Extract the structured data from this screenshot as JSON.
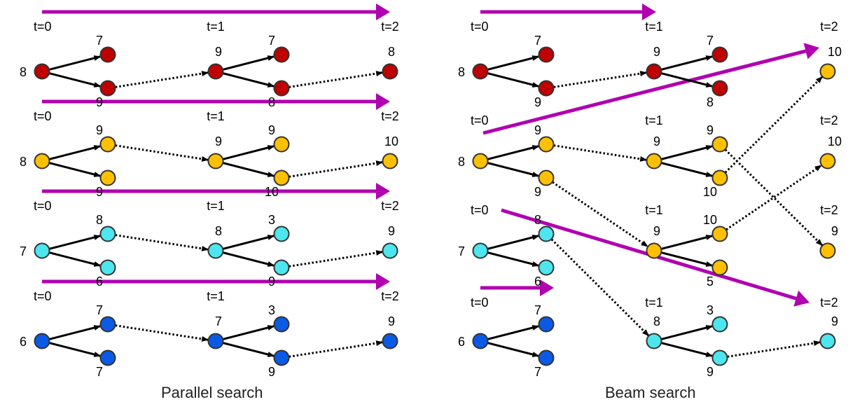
{
  "colors": {
    "red": "#c00000",
    "orange": "#ffc000",
    "cyan": "#4ee6ee",
    "blue": "#0a5ae6",
    "arrow": "#b000b0",
    "stroke": "#333333"
  },
  "captions": {
    "parallel": "Parallel search",
    "beam": "Beam search"
  },
  "time_labels": {
    "t0": "t=0",
    "t1": "t=1",
    "t2": "t=2"
  },
  "parallel": {
    "rows": [
      {
        "color": "red",
        "start": "8",
        "c1_top": "7",
        "c1_bot": "9",
        "mid": "9",
        "c2_top": "7",
        "c2_bot": "8",
        "end": "8"
      },
      {
        "color": "orange",
        "start": "8",
        "c1_top": "9",
        "c1_bot": "9",
        "mid": "9",
        "c2_top": "9",
        "c2_bot": "10",
        "end": "10"
      },
      {
        "color": "cyan",
        "start": "7",
        "c1_top": "8",
        "c1_bot": "6",
        "mid": "8",
        "c2_top": "3",
        "c2_bot": "9",
        "end": "9"
      },
      {
        "color": "blue",
        "start": "6",
        "c1_top": "7",
        "c1_bot": "7",
        "mid": "7",
        "c2_top": "3",
        "c2_bot": "9",
        "end": "9"
      }
    ]
  },
  "beam": {
    "start": [
      {
        "color": "red",
        "start": "8",
        "top": "7",
        "bot": "9"
      },
      {
        "color": "orange",
        "start": "8",
        "top": "9",
        "bot": "9"
      },
      {
        "color": "cyan",
        "start": "7",
        "top": "8",
        "bot": "6"
      },
      {
        "color": "blue",
        "start": "6",
        "top": "7",
        "bot": "7"
      }
    ],
    "mid": [
      {
        "color": "red",
        "mid": "9",
        "top": "7",
        "bot": "8"
      },
      {
        "color": "orange",
        "mid": "9",
        "top": "9",
        "bot": "10"
      },
      {
        "color": "orange",
        "mid": "9",
        "top": "10",
        "bot": "5"
      },
      {
        "color": "cyan",
        "mid": "8",
        "top": "3",
        "bot": "9"
      }
    ],
    "end": [
      {
        "color": "orange",
        "value": "10"
      },
      {
        "color": "orange",
        "value": "10"
      },
      {
        "color": "orange",
        "value": "9"
      },
      {
        "color": "cyan",
        "value": "9"
      }
    ]
  }
}
